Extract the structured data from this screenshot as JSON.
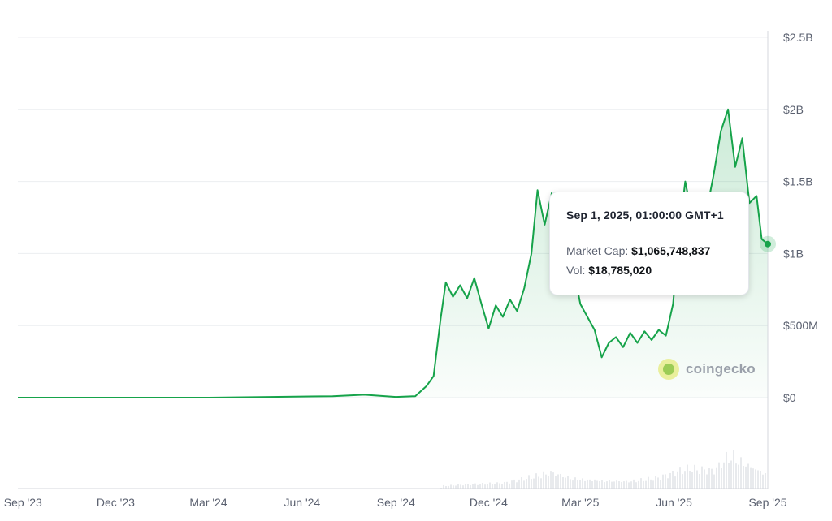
{
  "chart_data": {
    "type": "area",
    "y_axis": {
      "position": "right",
      "ticks": [
        "$2.5B",
        "$2B",
        "$1.5B",
        "$1B",
        "$500M",
        "$0"
      ],
      "ylim": [
        0,
        2500000000
      ]
    },
    "x_axis": {
      "ticks": [
        "Sep '23",
        "Dec '23",
        "Mar '24",
        "Jun '24",
        "Sep '24",
        "Dec '24",
        "Mar '25",
        "Jun '25",
        "Sep '25"
      ]
    },
    "grid": true,
    "series": [
      {
        "kind": "market_cap",
        "color": "#16a34a",
        "points": [
          [
            "2023-08-27",
            0
          ],
          [
            "2024-03-01",
            0
          ],
          [
            "2024-05-01",
            5000000
          ],
          [
            "2024-07-01",
            10000000
          ],
          [
            "2024-08-01",
            20000000
          ],
          [
            "2024-09-01",
            5000000
          ],
          [
            "2024-09-20",
            10000000
          ],
          [
            "2024-10-01",
            80000000
          ],
          [
            "2024-10-08",
            150000000
          ],
          [
            "2024-10-15",
            550000000
          ],
          [
            "2024-10-20",
            800000000
          ],
          [
            "2024-10-27",
            700000000
          ],
          [
            "2024-11-03",
            780000000
          ],
          [
            "2024-11-10",
            690000000
          ],
          [
            "2024-11-17",
            830000000
          ],
          [
            "2024-11-24",
            650000000
          ],
          [
            "2024-12-01",
            480000000
          ],
          [
            "2024-12-08",
            640000000
          ],
          [
            "2024-12-15",
            560000000
          ],
          [
            "2024-12-22",
            680000000
          ],
          [
            "2024-12-29",
            600000000
          ],
          [
            "2025-01-05",
            760000000
          ],
          [
            "2025-01-12",
            1000000000
          ],
          [
            "2025-01-18",
            1440000000
          ],
          [
            "2025-01-25",
            1200000000
          ],
          [
            "2025-02-01",
            1420000000
          ],
          [
            "2025-02-08",
            1050000000
          ],
          [
            "2025-02-15",
            1150000000
          ],
          [
            "2025-02-22",
            900000000
          ],
          [
            "2025-03-01",
            650000000
          ],
          [
            "2025-03-08",
            560000000
          ],
          [
            "2025-03-15",
            470000000
          ],
          [
            "2025-03-22",
            280000000
          ],
          [
            "2025-03-29",
            380000000
          ],
          [
            "2025-04-05",
            420000000
          ],
          [
            "2025-04-12",
            350000000
          ],
          [
            "2025-04-19",
            450000000
          ],
          [
            "2025-04-26",
            380000000
          ],
          [
            "2025-05-03",
            460000000
          ],
          [
            "2025-05-10",
            400000000
          ],
          [
            "2025-05-17",
            470000000
          ],
          [
            "2025-05-24",
            430000000
          ],
          [
            "2025-05-31",
            650000000
          ],
          [
            "2025-06-07",
            1200000000
          ],
          [
            "2025-06-12",
            1500000000
          ],
          [
            "2025-06-19",
            1250000000
          ],
          [
            "2025-06-26",
            1400000000
          ],
          [
            "2025-07-03",
            1300000000
          ],
          [
            "2025-07-10",
            1550000000
          ],
          [
            "2025-07-17",
            1850000000
          ],
          [
            "2025-07-24",
            2000000000
          ],
          [
            "2025-07-31",
            1600000000
          ],
          [
            "2025-08-07",
            1800000000
          ],
          [
            "2025-08-14",
            1350000000
          ],
          [
            "2025-08-21",
            1400000000
          ],
          [
            "2025-08-26",
            1100000000
          ],
          [
            "2025-09-01",
            1065748837
          ]
        ]
      },
      {
        "kind": "volume",
        "color": "#e8eaed",
        "points": [
          [
            "2024-10-15",
            0.08
          ],
          [
            "2024-11-15",
            0.12
          ],
          [
            "2024-12-15",
            0.15
          ],
          [
            "2025-01-15",
            0.35
          ],
          [
            "2025-02-01",
            0.45
          ],
          [
            "2025-02-20",
            0.3
          ],
          [
            "2025-03-15",
            0.25
          ],
          [
            "2025-04-15",
            0.2
          ],
          [
            "2025-05-15",
            0.3
          ],
          [
            "2025-06-15",
            0.55
          ],
          [
            "2025-07-10",
            0.5
          ],
          [
            "2025-07-25",
            1.0
          ],
          [
            "2025-08-10",
            0.7
          ],
          [
            "2025-09-01",
            0.4
          ]
        ]
      }
    ],
    "tooltip": {
      "date": "Sep 1, 2025, 01:00:00 GMT+1",
      "market_cap_label": "Market Cap:",
      "market_cap_value": "$1,065,748,837",
      "vol_label": "Vol:",
      "vol_value": "$18,785,020"
    },
    "watermark": "coingecko"
  }
}
